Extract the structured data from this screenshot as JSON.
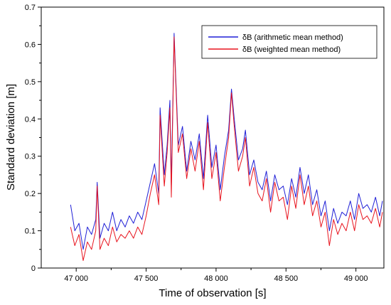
{
  "chart_data": {
    "type": "line",
    "xlabel": "Time of observation [s]",
    "ylabel": "Standard deviation [m]",
    "xlim": [
      46750,
      49200
    ],
    "ylim": [
      0,
      0.7
    ],
    "x_ticks": [
      47000,
      47500,
      48000,
      48500,
      49000
    ],
    "x_tick_labels": [
      "47 000",
      "47 500",
      "48 000",
      "48 500",
      "49 000"
    ],
    "y_ticks": [
      0,
      0.1,
      0.2,
      0.3,
      0.4,
      0.5,
      0.6,
      0.7
    ],
    "y_tick_labels": [
      "0",
      "0.1",
      "0.2",
      "0.3",
      "0.4",
      "0.5",
      "0.6",
      "0.7"
    ],
    "legend_position": "top-right",
    "grid": false,
    "series": [
      {
        "name": "δB (arithmetic mean method)",
        "color": "#1f1fd6",
        "x": [
          46960,
          46990,
          47020,
          47050,
          47080,
          47110,
          47140,
          47150,
          47170,
          47200,
          47230,
          47260,
          47290,
          47320,
          47350,
          47380,
          47410,
          47440,
          47470,
          47500,
          47530,
          47560,
          47590,
          47600,
          47630,
          47650,
          47670,
          47680,
          47700,
          47730,
          47760,
          47790,
          47820,
          47850,
          47880,
          47910,
          47940,
          47970,
          48000,
          48030,
          48060,
          48090,
          48110,
          48130,
          48160,
          48190,
          48210,
          48240,
          48270,
          48300,
          48330,
          48360,
          48390,
          48420,
          48450,
          48480,
          48510,
          48540,
          48570,
          48600,
          48630,
          48660,
          48690,
          48720,
          48750,
          48780,
          48810,
          48840,
          48870,
          48900,
          48930,
          48960,
          48990,
          49020,
          49050,
          49080,
          49110,
          49140,
          49170,
          49190
        ],
        "values": [
          0.17,
          0.1,
          0.12,
          0.05,
          0.11,
          0.09,
          0.13,
          0.23,
          0.08,
          0.12,
          0.1,
          0.15,
          0.1,
          0.13,
          0.11,
          0.14,
          0.12,
          0.15,
          0.13,
          0.18,
          0.23,
          0.28,
          0.2,
          0.43,
          0.25,
          0.33,
          0.45,
          0.22,
          0.63,
          0.33,
          0.38,
          0.26,
          0.34,
          0.29,
          0.36,
          0.24,
          0.41,
          0.27,
          0.33,
          0.21,
          0.3,
          0.37,
          0.48,
          0.4,
          0.29,
          0.32,
          0.37,
          0.25,
          0.29,
          0.23,
          0.21,
          0.26,
          0.18,
          0.25,
          0.21,
          0.22,
          0.17,
          0.24,
          0.19,
          0.27,
          0.2,
          0.25,
          0.17,
          0.21,
          0.14,
          0.18,
          0.1,
          0.16,
          0.12,
          0.15,
          0.14,
          0.18,
          0.13,
          0.2,
          0.16,
          0.17,
          0.15,
          0.19,
          0.14,
          0.18
        ]
      },
      {
        "name": "δB (weighted mean method)",
        "color": "#e8141e",
        "x": [
          46960,
          46990,
          47020,
          47050,
          47080,
          47110,
          47140,
          47150,
          47170,
          47200,
          47230,
          47260,
          47290,
          47320,
          47350,
          47380,
          47410,
          47440,
          47470,
          47500,
          47530,
          47560,
          47590,
          47600,
          47630,
          47650,
          47670,
          47680,
          47700,
          47730,
          47760,
          47790,
          47820,
          47850,
          47880,
          47910,
          47940,
          47970,
          48000,
          48030,
          48060,
          48090,
          48110,
          48130,
          48160,
          48190,
          48210,
          48240,
          48270,
          48300,
          48330,
          48360,
          48390,
          48420,
          48450,
          48480,
          48510,
          48540,
          48570,
          48600,
          48630,
          48660,
          48690,
          48720,
          48750,
          48780,
          48810,
          48840,
          48870,
          48900,
          48930,
          48960,
          48990,
          49020,
          49050,
          49080,
          49110,
          49140,
          49170,
          49190
        ],
        "values": [
          0.11,
          0.06,
          0.09,
          0.02,
          0.07,
          0.05,
          0.1,
          0.22,
          0.05,
          0.08,
          0.06,
          0.11,
          0.07,
          0.09,
          0.08,
          0.1,
          0.08,
          0.11,
          0.09,
          0.14,
          0.2,
          0.25,
          0.17,
          0.41,
          0.22,
          0.31,
          0.43,
          0.19,
          0.62,
          0.31,
          0.36,
          0.24,
          0.32,
          0.26,
          0.34,
          0.21,
          0.39,
          0.24,
          0.31,
          0.18,
          0.27,
          0.35,
          0.47,
          0.38,
          0.26,
          0.3,
          0.35,
          0.22,
          0.27,
          0.2,
          0.18,
          0.24,
          0.15,
          0.23,
          0.18,
          0.19,
          0.13,
          0.22,
          0.16,
          0.25,
          0.17,
          0.22,
          0.14,
          0.18,
          0.11,
          0.15,
          0.06,
          0.13,
          0.09,
          0.12,
          0.1,
          0.15,
          0.1,
          0.17,
          0.13,
          0.14,
          0.12,
          0.16,
          0.11,
          0.15
        ]
      }
    ]
  }
}
